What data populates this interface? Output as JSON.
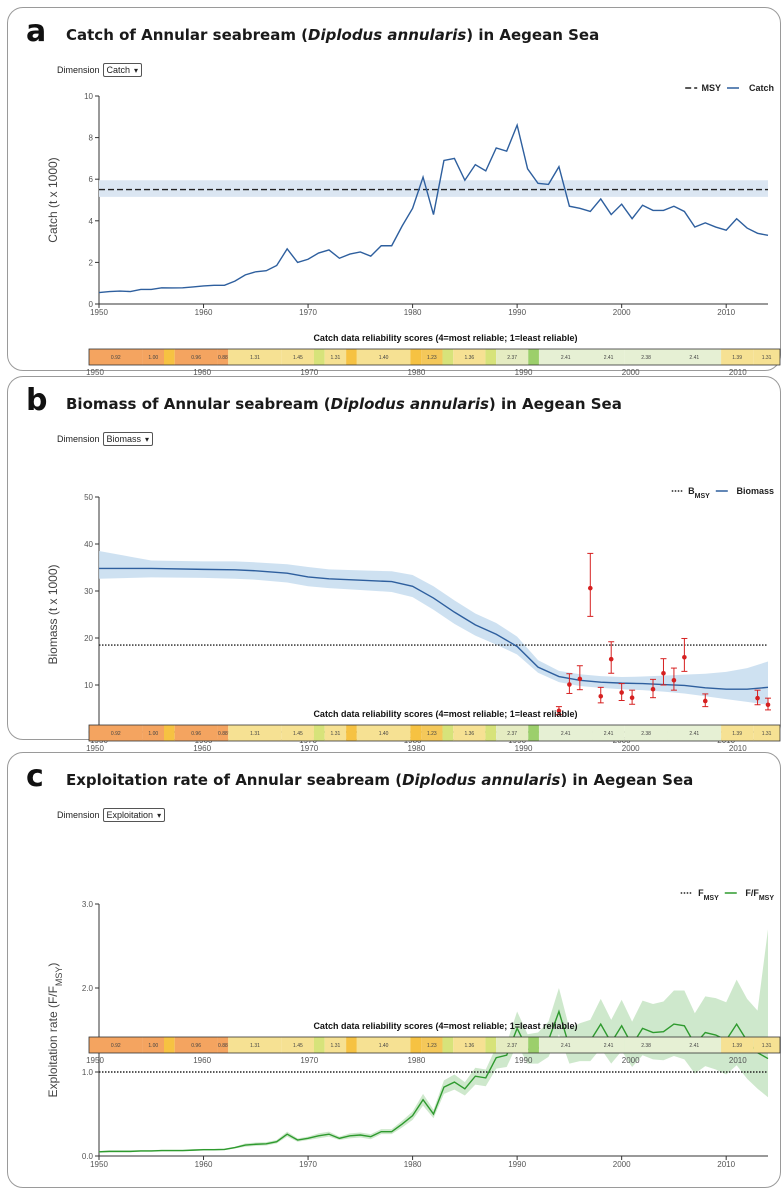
{
  "chart_data": [
    {
      "panel": "a",
      "type": "line",
      "title_prefix": "Catch of Annular seabream (",
      "title_species": "Diplodus annularis",
      "title_suffix": ") in Aegean Sea",
      "dimension_label": "Dimension",
      "dimension_value": "Catch",
      "ylabel": "Catch (t x 1000)",
      "ylim": [
        0,
        10
      ],
      "yticks": [
        0,
        2,
        4,
        6,
        8,
        10
      ],
      "xlim": [
        1950,
        2014
      ],
      "xticks": [
        1950,
        1960,
        1970,
        1980,
        1990,
        2000,
        2010
      ],
      "legend_position": "top-right",
      "reference": {
        "name": "MSY",
        "value": 5.5,
        "band": [
          5.15,
          5.95
        ],
        "style": "dashed"
      },
      "series": [
        {
          "name": "Catch",
          "color": "#2e5f9e",
          "x": [
            1950,
            1951,
            1952,
            1953,
            1954,
            1955,
            1956,
            1957,
            1958,
            1959,
            1960,
            1961,
            1962,
            1963,
            1964,
            1965,
            1966,
            1967,
            1968,
            1969,
            1970,
            1971,
            1972,
            1973,
            1974,
            1975,
            1976,
            1977,
            1978,
            1979,
            1980,
            1981,
            1982,
            1983,
            1984,
            1985,
            1986,
            1987,
            1988,
            1989,
            1990,
            1991,
            1992,
            1993,
            1994,
            1995,
            1996,
            1997,
            1998,
            1999,
            2000,
            2001,
            2002,
            2003,
            2004,
            2005,
            2006,
            2007,
            2008,
            2009,
            2010,
            2011,
            2012,
            2013,
            2014
          ],
          "y": [
            0.55,
            0.6,
            0.62,
            0.6,
            0.7,
            0.7,
            0.78,
            0.77,
            0.78,
            0.82,
            0.87,
            0.9,
            0.9,
            1.1,
            1.4,
            1.55,
            1.6,
            1.85,
            2.65,
            2.0,
            2.15,
            2.45,
            2.6,
            2.2,
            2.4,
            2.5,
            2.3,
            2.8,
            2.8,
            3.75,
            4.6,
            6.1,
            4.3,
            6.9,
            7.0,
            5.95,
            6.7,
            6.4,
            7.5,
            7.35,
            8.6,
            6.5,
            5.8,
            5.75,
            6.6,
            4.7,
            4.6,
            4.45,
            5.05,
            4.3,
            4.8,
            4.1,
            4.75,
            4.5,
            4.5,
            4.7,
            4.45,
            3.7,
            3.9,
            3.7,
            3.55,
            4.1,
            3.65,
            3.4,
            3.3
          ]
        }
      ]
    },
    {
      "panel": "b",
      "type": "line",
      "title_prefix": "Biomass of Annular seabream (",
      "title_species": "Diplodus annularis",
      "title_suffix": ") in Aegean Sea",
      "dimension_label": "Dimension",
      "dimension_value": "Biomass",
      "ylabel": "Biomass (t x 1000)",
      "ylim": [
        0,
        50
      ],
      "yticks": [
        0,
        10,
        20,
        30,
        40,
        50
      ],
      "xlim": [
        1950,
        2014
      ],
      "xticks": [
        1950,
        1960,
        1970,
        1980,
        1990,
        2000,
        2010
      ],
      "legend_position": "top-right",
      "reference": {
        "name": "B",
        "name_sub": "MSY",
        "value": 18.5,
        "style": "dotted"
      },
      "series": [
        {
          "name": "Biomass",
          "color": "#2e5f9e",
          "x": [
            1950,
            1955,
            1960,
            1963,
            1965,
            1968,
            1970,
            1972,
            1975,
            1978,
            1980,
            1982,
            1984,
            1986,
            1988,
            1990,
            1992,
            1994,
            1996,
            1998,
            2000,
            2002,
            2004,
            2006,
            2008,
            2010,
            2012,
            2014
          ],
          "y": [
            34.8,
            34.8,
            34.6,
            34.5,
            34.3,
            33.8,
            33.0,
            32.6,
            32.3,
            32.0,
            31.0,
            28.5,
            25.5,
            22.8,
            20.8,
            18.2,
            13.8,
            11.8,
            11.0,
            10.6,
            10.4,
            10.3,
            10.1,
            9.9,
            9.4,
            9.1,
            9.1,
            9.5
          ],
          "lower": [
            32.6,
            32.9,
            32.8,
            32.6,
            32.4,
            31.8,
            31.0,
            30.6,
            30.2,
            29.8,
            28.7,
            26.0,
            23.0,
            20.5,
            18.6,
            16.5,
            12.6,
            10.6,
            9.8,
            9.4,
            9.1,
            8.9,
            8.6,
            8.2,
            7.6,
            7.0,
            6.4,
            5.8
          ],
          "upper": [
            38.5,
            36.5,
            36.3,
            36.3,
            36.1,
            35.7,
            35.1,
            34.6,
            34.4,
            34.2,
            33.4,
            31.0,
            28.0,
            25.2,
            23.2,
            20.3,
            15.3,
            13.0,
            12.3,
            11.9,
            11.7,
            11.8,
            12.0,
            12.2,
            12.4,
            12.8,
            13.6,
            15.0
          ]
        }
      ],
      "survey_points": {
        "color": "#d62020",
        "x": [
          1994,
          1995,
          1996,
          1997,
          1998,
          1999,
          2000,
          2001,
          2003,
          2004,
          2005,
          2006,
          2008,
          2013,
          2014
        ],
        "y": [
          4.5,
          10.1,
          11.3,
          30.6,
          7.6,
          15.5,
          8.4,
          7.3,
          9.1,
          12.5,
          11.0,
          15.9,
          6.6,
          7.2,
          5.8
        ],
        "lo": [
          3.7,
          8.2,
          9.0,
          24.6,
          6.2,
          12.5,
          6.7,
          5.9,
          7.3,
          10.0,
          8.9,
          12.9,
          5.4,
          5.8,
          4.7
        ],
        "hi": [
          5.4,
          12.4,
          14.1,
          38.0,
          9.5,
          19.2,
          10.3,
          8.9,
          11.2,
          15.6,
          13.6,
          19.9,
          8.1,
          8.9,
          7.2
        ]
      }
    },
    {
      "panel": "c",
      "type": "line",
      "title_prefix": "Exploitation rate of Annular seabream (",
      "title_species": "Diplodus annularis",
      "title_suffix": ") in Aegean Sea",
      "dimension_label": "Dimension",
      "dimension_value": "Exploitation",
      "ylabel_main": "Exploitation rate (F/F",
      "ylabel_sub": "MSY",
      "ylabel_end": ")",
      "ylim": [
        0,
        3
      ],
      "yticks": [
        0.0,
        1.0,
        2.0,
        3.0
      ],
      "ytick_labels": [
        "0.0",
        "1.0",
        "2.0",
        "3.0"
      ],
      "xlim": [
        1950,
        2014
      ],
      "xticks": [
        1950,
        1960,
        1970,
        1980,
        1990,
        2000,
        2010
      ],
      "legend_position": "top-right",
      "reference": {
        "name": "F",
        "name_sub": "MSY",
        "value": 1.0,
        "style": "dotted"
      },
      "series": [
        {
          "name": "F/F",
          "name_sub": "MSY",
          "color": "#2e9a2e",
          "x": [
            1950,
            1951,
            1952,
            1953,
            1954,
            1955,
            1956,
            1957,
            1958,
            1959,
            1960,
            1961,
            1962,
            1963,
            1964,
            1965,
            1966,
            1967,
            1968,
            1969,
            1970,
            1971,
            1972,
            1973,
            1974,
            1975,
            1976,
            1977,
            1978,
            1979,
            1980,
            1981,
            1982,
            1983,
            1984,
            1985,
            1986,
            1987,
            1988,
            1989,
            1990,
            1991,
            1992,
            1993,
            1994,
            1995,
            1996,
            1997,
            1998,
            1999,
            2000,
            2001,
            2002,
            2003,
            2004,
            2005,
            2006,
            2007,
            2008,
            2009,
            2010,
            2011,
            2012,
            2013,
            2014
          ],
          "y": [
            0.05,
            0.055,
            0.055,
            0.055,
            0.06,
            0.06,
            0.065,
            0.065,
            0.065,
            0.07,
            0.075,
            0.075,
            0.078,
            0.1,
            0.13,
            0.14,
            0.145,
            0.17,
            0.26,
            0.19,
            0.21,
            0.24,
            0.26,
            0.21,
            0.24,
            0.25,
            0.23,
            0.29,
            0.29,
            0.38,
            0.48,
            0.67,
            0.5,
            0.82,
            0.88,
            0.8,
            0.95,
            0.93,
            1.17,
            1.2,
            1.52,
            1.27,
            1.28,
            1.38,
            1.72,
            1.3,
            1.35,
            1.37,
            1.57,
            1.35,
            1.55,
            1.32,
            1.52,
            1.47,
            1.48,
            1.57,
            1.55,
            1.33,
            1.47,
            1.44,
            1.38,
            1.57,
            1.37,
            1.23,
            1.16
          ],
          "lower": [
            0.04,
            0.045,
            0.045,
            0.045,
            0.05,
            0.05,
            0.055,
            0.055,
            0.055,
            0.06,
            0.065,
            0.065,
            0.068,
            0.09,
            0.11,
            0.12,
            0.125,
            0.15,
            0.23,
            0.17,
            0.19,
            0.21,
            0.23,
            0.19,
            0.21,
            0.22,
            0.2,
            0.26,
            0.26,
            0.34,
            0.43,
            0.6,
            0.45,
            0.74,
            0.79,
            0.72,
            0.85,
            0.83,
            1.04,
            1.06,
            1.33,
            1.1,
            1.1,
            1.18,
            1.45,
            1.1,
            1.13,
            1.13,
            1.28,
            1.1,
            1.25,
            1.06,
            1.2,
            1.15,
            1.14,
            1.19,
            1.15,
            0.98,
            1.07,
            1.03,
            0.97,
            1.08,
            0.92,
            0.8,
            0.7
          ],
          "upper": [
            0.06,
            0.065,
            0.065,
            0.065,
            0.07,
            0.07,
            0.075,
            0.075,
            0.075,
            0.08,
            0.085,
            0.085,
            0.09,
            0.11,
            0.15,
            0.16,
            0.165,
            0.19,
            0.29,
            0.21,
            0.23,
            0.27,
            0.29,
            0.23,
            0.27,
            0.28,
            0.26,
            0.32,
            0.32,
            0.42,
            0.53,
            0.74,
            0.55,
            0.9,
            0.97,
            0.88,
            1.05,
            1.03,
            1.3,
            1.34,
            1.72,
            1.45,
            1.47,
            1.6,
            2.0,
            1.52,
            1.58,
            1.62,
            1.87,
            1.62,
            1.86,
            1.6,
            1.85,
            1.81,
            1.84,
            1.97,
            1.97,
            1.7,
            1.9,
            1.88,
            1.83,
            2.1,
            1.87,
            1.73,
            2.7
          ]
        }
      ]
    }
  ],
  "reliability": {
    "title": "Catch data reliability scores (4=most reliable; 1=least reliable)",
    "segments": [
      {
        "start": 1950,
        "end": 1955,
        "color": "#f4a460",
        "label": "0.92"
      },
      {
        "start": 1955,
        "end": 1957,
        "color": "#f4a460",
        "label": "1.00"
      },
      {
        "start": 1957,
        "end": 1958,
        "color": "#f6c242",
        "label": ""
      },
      {
        "start": 1958,
        "end": 1962,
        "color": "#f4a460",
        "label": "0.96"
      },
      {
        "start": 1962,
        "end": 1963,
        "color": "#f4a460",
        "label": "0.88"
      },
      {
        "start": 1963,
        "end": 1968,
        "color": "#f6e193",
        "label": "1.31"
      },
      {
        "start": 1968,
        "end": 1971,
        "color": "#f6e193",
        "label": "1.45"
      },
      {
        "start": 1971,
        "end": 1972,
        "color": "#d7e37a",
        "label": ""
      },
      {
        "start": 1972,
        "end": 1974,
        "color": "#f6e193",
        "label": "1.31"
      },
      {
        "start": 1974,
        "end": 1975,
        "color": "#f6c242",
        "label": ""
      },
      {
        "start": 1975,
        "end": 1980,
        "color": "#f6e193",
        "label": "1.40"
      },
      {
        "start": 1980,
        "end": 1981,
        "color": "#f6c242",
        "label": ""
      },
      {
        "start": 1981,
        "end": 1983,
        "color": "#f4c85a",
        "label": "1.23"
      },
      {
        "start": 1983,
        "end": 1984,
        "color": "#d7e37a",
        "label": ""
      },
      {
        "start": 1984,
        "end": 1987,
        "color": "#f6e193",
        "label": "1.36"
      },
      {
        "start": 1987,
        "end": 1988,
        "color": "#d7e37a",
        "label": ""
      },
      {
        "start": 1988,
        "end": 1991,
        "color": "#e5ecc2",
        "label": "2.37"
      },
      {
        "start": 1991,
        "end": 1992,
        "color": "#9ccf6b",
        "label": ""
      },
      {
        "start": 1992,
        "end": 1997,
        "color": "#e6f0d4",
        "label": "2.41"
      },
      {
        "start": 1997,
        "end": 2000,
        "color": "#e6f0d4",
        "label": "2.41"
      },
      {
        "start": 2000,
        "end": 2004,
        "color": "#e6f0d4",
        "label": "2.38"
      },
      {
        "start": 2004,
        "end": 2009,
        "color": "#e6f0d4",
        "label": "2.41"
      },
      {
        "start": 2009,
        "end": 2012,
        "color": "#f6e193",
        "label": "1.39"
      },
      {
        "start": 2012,
        "end": 2014.5,
        "color": "#f6e193",
        "label": "1.31"
      }
    ]
  },
  "colors": {
    "band_catch": "#dbe6f2",
    "band_biomass": "#c6dcef",
    "band_exploitation": "#c5e4c3",
    "survey": "#d62020"
  }
}
